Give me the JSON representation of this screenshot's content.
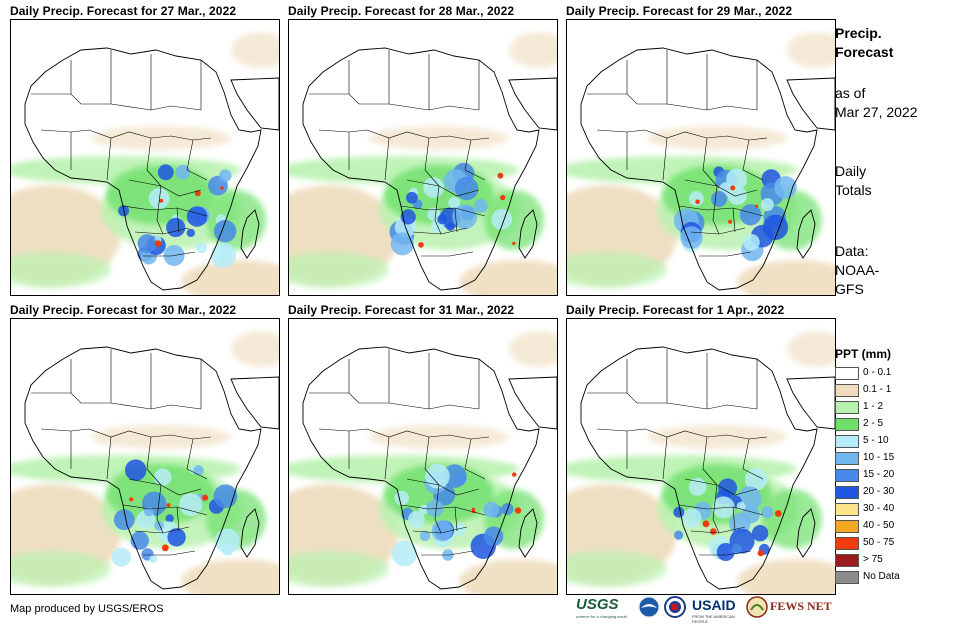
{
  "panels": [
    {
      "title": "Daily Precip. Forecast for 27 Mar., 2022",
      "variant": 0
    },
    {
      "title": "Daily Precip. Forecast for 28 Mar., 2022",
      "variant": 1
    },
    {
      "title": "Daily Precip. Forecast for 29 Mar., 2022",
      "variant": 2
    },
    {
      "title": "Daily Precip. Forecast for 30 Mar., 2022",
      "variant": 3
    },
    {
      "title": "Daily Precip. Forecast for 31 Mar., 2022",
      "variant": 4
    },
    {
      "title": "Daily Precip. Forecast for 1 Apr., 2022",
      "variant": 5
    }
  ],
  "sidebar": {
    "title_line1": "Precip.",
    "title_line2": "Forecast",
    "asof_line1": "as of",
    "asof_line2": "Mar 27, 2022",
    "totals_line1": "Daily",
    "totals_line2": "Totals",
    "data_line1": "Data:",
    "data_line2": "NOAA-",
    "data_line3": "GFS"
  },
  "legend": {
    "title": "PPT (mm)",
    "items": [
      {
        "label": "0 - 0.1",
        "color": "#ffffff"
      },
      {
        "label": "0.1 - 1",
        "color": "#eedcbc"
      },
      {
        "label": "1 - 2",
        "color": "#b9f2b0"
      },
      {
        "label": "2 - 5",
        "color": "#6ee06a"
      },
      {
        "label": "5 - 10",
        "color": "#b5ecf7"
      },
      {
        "label": "10 - 15",
        "color": "#72b6f0"
      },
      {
        "label": "15 - 20",
        "color": "#4689e8"
      },
      {
        "label": "20 - 30",
        "color": "#1f55e0"
      },
      {
        "label": "30 - 40",
        "color": "#fde68a"
      },
      {
        "label": "40 - 50",
        "color": "#f5a623"
      },
      {
        "label": "50 - 75",
        "color": "#f03c0c"
      },
      {
        "label": "> 75",
        "color": "#9b1c1c"
      },
      {
        "label": "No Data",
        "color": "#8c8c8c"
      }
    ]
  },
  "credit": "Map produced by USGS/EROS",
  "logos": {
    "usgs": "USGS",
    "usgs_tagline": "science for a changing world",
    "usaid": "USAID",
    "usaid_tagline": "FROM THE AMERICAN PEOPLE",
    "fews": "FEWS NET"
  }
}
